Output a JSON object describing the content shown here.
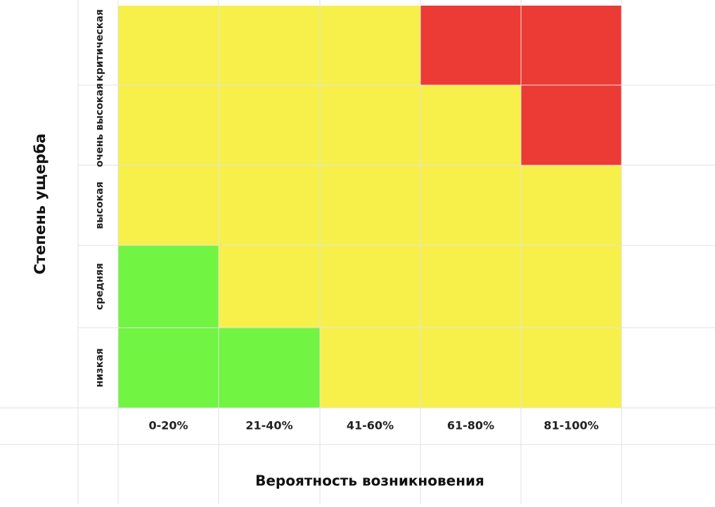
{
  "chart_data": {
    "type": "heatmap",
    "title": "",
    "xlabel": "Вероятность возникновения",
    "ylabel": "Степень ущерба",
    "x_categories": [
      "0-20%",
      "21-40%",
      "41-60%",
      "61-80%",
      "81-100%"
    ],
    "y_categories": [
      "низкая",
      "средняя",
      "высокая",
      "очень высокая",
      "критическая"
    ],
    "cells": [
      [
        "green",
        "green",
        "yellow",
        "yellow",
        "yellow"
      ],
      [
        "green",
        "yellow",
        "yellow",
        "yellow",
        "yellow"
      ],
      [
        "yellow",
        "yellow",
        "yellow",
        "yellow",
        "yellow"
      ],
      [
        "yellow",
        "yellow",
        "yellow",
        "yellow",
        "red"
      ],
      [
        "yellow",
        "yellow",
        "yellow",
        "red",
        "red"
      ]
    ],
    "colors": {
      "green": "#71f442",
      "yellow": "#f7f04a",
      "red": "#ec3a35",
      "grid": "#e2e2e2"
    },
    "grid": true
  }
}
